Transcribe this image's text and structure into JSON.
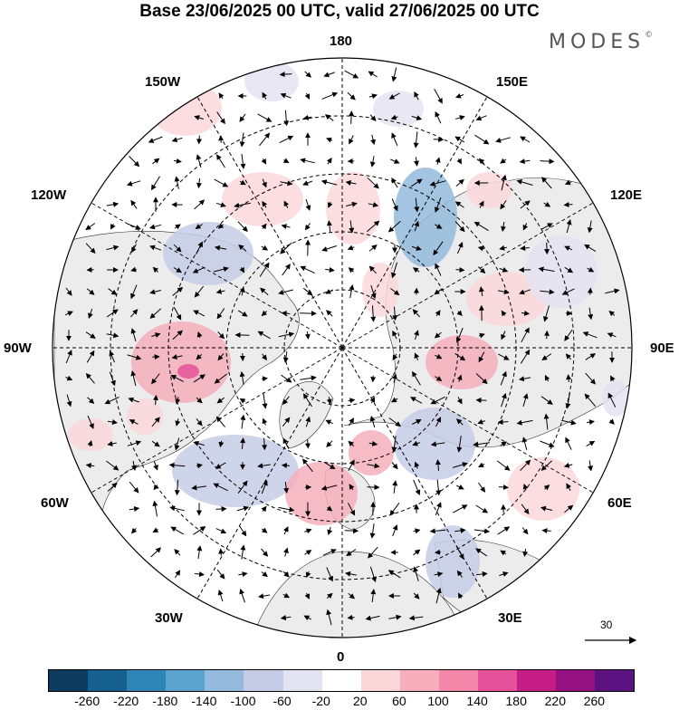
{
  "title": "Base 23/06/2025 00 UTC, valid 27/06/2025 00 UTC",
  "brand": "MODES",
  "brand_mark": "©",
  "longitude_labels": {
    "lon_180": "180",
    "lon_150e": "150E",
    "lon_120e": "120E",
    "lon_90e": "90E",
    "lon_60e": "60E",
    "lon_30e": "30E",
    "lon_0": "0",
    "lon_30w": "30W",
    "lon_60w": "60W",
    "lon_90w": "90W",
    "lon_120w": "120W",
    "lon_150w": "150W"
  },
  "vector_reference": {
    "label": "30"
  },
  "colorbar": {
    "colors": [
      "#0d3b5e",
      "#15608f",
      "#2e86b8",
      "#5ba3cf",
      "#94bbdd",
      "#c5cde6",
      "#e4e3f1",
      "#ffffff",
      "#fbd7da",
      "#f6afbb",
      "#f287aa",
      "#e4519a",
      "#c61c86",
      "#951080",
      "#5c1280"
    ],
    "ticks": [
      "-260",
      "-220",
      "-180",
      "-140",
      "-100",
      "-60",
      "-20",
      "20",
      "60",
      "100",
      "140",
      "180",
      "220",
      "260"
    ]
  },
  "anomaly_colors": {
    "land": "#ececec",
    "ocean": "#ffffff",
    "coast": "#333333"
  }
}
